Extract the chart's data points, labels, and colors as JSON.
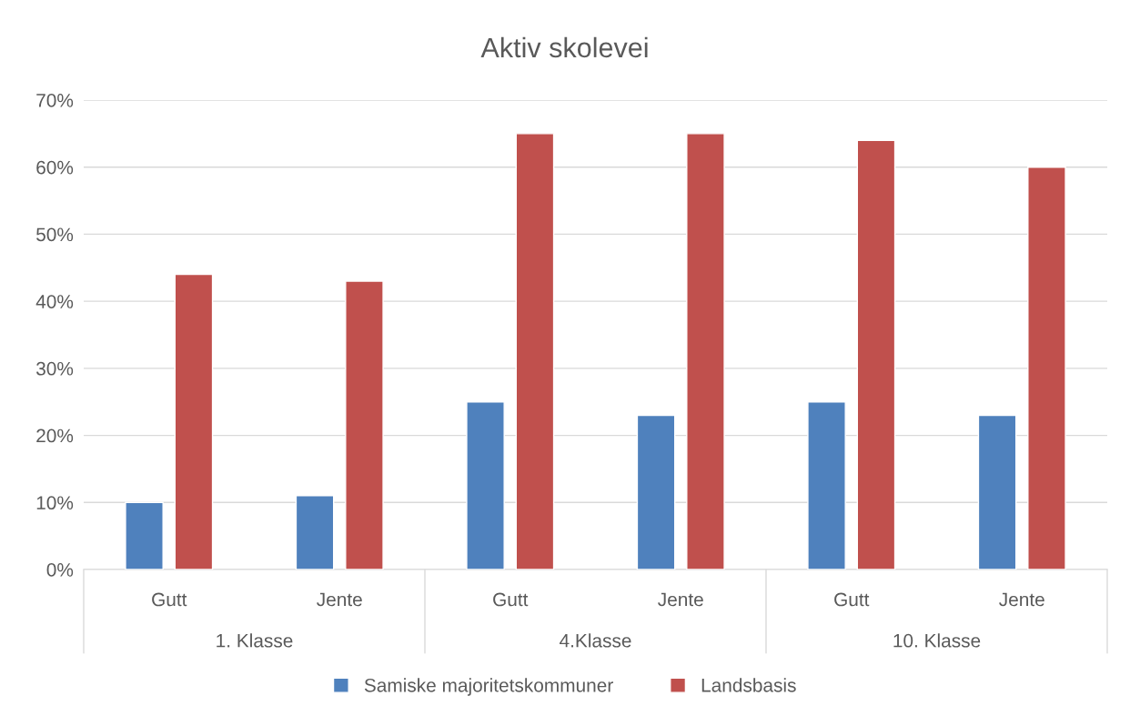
{
  "chart_data": {
    "type": "bar",
    "title": "Aktiv skolevei",
    "categories": [
      "Gutt",
      "Jente",
      "Gutt",
      "Jente",
      "Gutt",
      "Jente"
    ],
    "series": [
      {
        "name": "Samiske majoritetskommuner",
        "color": "#4f81bd",
        "values": [
          10,
          11,
          25,
          23,
          25,
          23
        ]
      },
      {
        "name": "Landsbasis",
        "color": "#c0504d",
        "values": [
          44,
          43,
          65,
          65,
          64,
          60
        ]
      }
    ],
    "annotations": [
      "1. Klasse",
      "4.Klasse",
      "10. Klasse"
    ],
    "ylim": [
      0,
      70
    ],
    "yticks": [
      {
        "value": 0,
        "label": "0%"
      },
      {
        "value": 10,
        "label": "10%"
      },
      {
        "value": 20,
        "label": "20%"
      },
      {
        "value": 30,
        "label": "30%"
      },
      {
        "value": 40,
        "label": "40%"
      },
      {
        "value": 50,
        "label": "50%"
      },
      {
        "value": 60,
        "label": "60%"
      },
      {
        "value": 70,
        "label": "70%"
      }
    ],
    "grid": "y",
    "legend": "bottom"
  }
}
